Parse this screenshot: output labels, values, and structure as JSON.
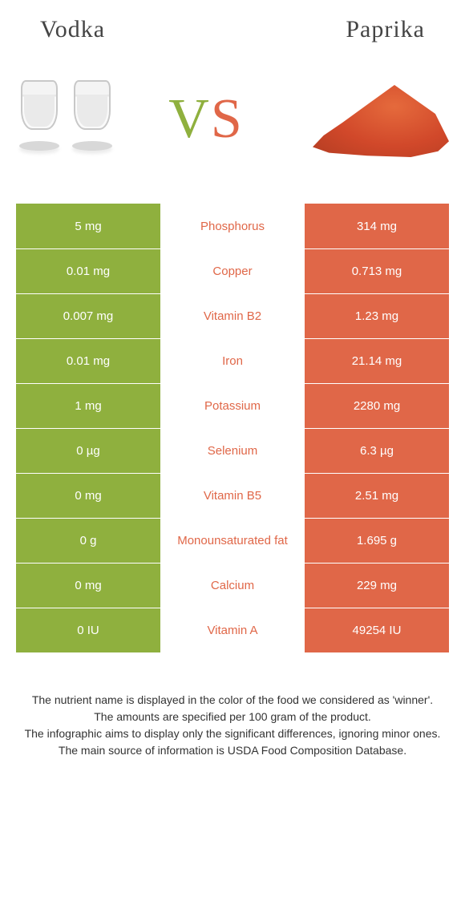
{
  "header": {
    "left": "Vodka",
    "right": "Paprika"
  },
  "vs": {
    "v": "V",
    "s": "S"
  },
  "colors": {
    "vodka": "#8fb03e",
    "paprika": "#e06748",
    "nutrient_winner_text": "#e06748",
    "row_border": "#ffffff"
  },
  "comparison": {
    "type": "table",
    "columns": [
      "vodka_value",
      "nutrient",
      "paprika_value"
    ],
    "rows": [
      {
        "left": "5 mg",
        "nutrient": "Phosphorus",
        "right": "314 mg",
        "winner": "paprika"
      },
      {
        "left": "0.01 mg",
        "nutrient": "Copper",
        "right": "0.713 mg",
        "winner": "paprika"
      },
      {
        "left": "0.007 mg",
        "nutrient": "Vitamin B2",
        "right": "1.23 mg",
        "winner": "paprika"
      },
      {
        "left": "0.01 mg",
        "nutrient": "Iron",
        "right": "21.14 mg",
        "winner": "paprika"
      },
      {
        "left": "1 mg",
        "nutrient": "Potassium",
        "right": "2280 mg",
        "winner": "paprika"
      },
      {
        "left": "0 µg",
        "nutrient": "Selenium",
        "right": "6.3 µg",
        "winner": "paprika"
      },
      {
        "left": "0 mg",
        "nutrient": "Vitamin B5",
        "right": "2.51 mg",
        "winner": "paprika"
      },
      {
        "left": "0 g",
        "nutrient": "Monounsaturated fat",
        "right": "1.695 g",
        "winner": "paprika"
      },
      {
        "left": "0 mg",
        "nutrient": "Calcium",
        "right": "229 mg",
        "winner": "paprika"
      },
      {
        "left": "0 IU",
        "nutrient": "Vitamin A",
        "right": "49254 IU",
        "winner": "paprika"
      }
    ]
  },
  "footnotes": [
    "The nutrient name is displayed in the color of the food we considered as 'winner'.",
    "The amounts are specified per 100 gram of the product.",
    "The infographic aims to display only the significant differences, ignoring minor ones.",
    "The main source of information is USDA Food Composition Database."
  ]
}
